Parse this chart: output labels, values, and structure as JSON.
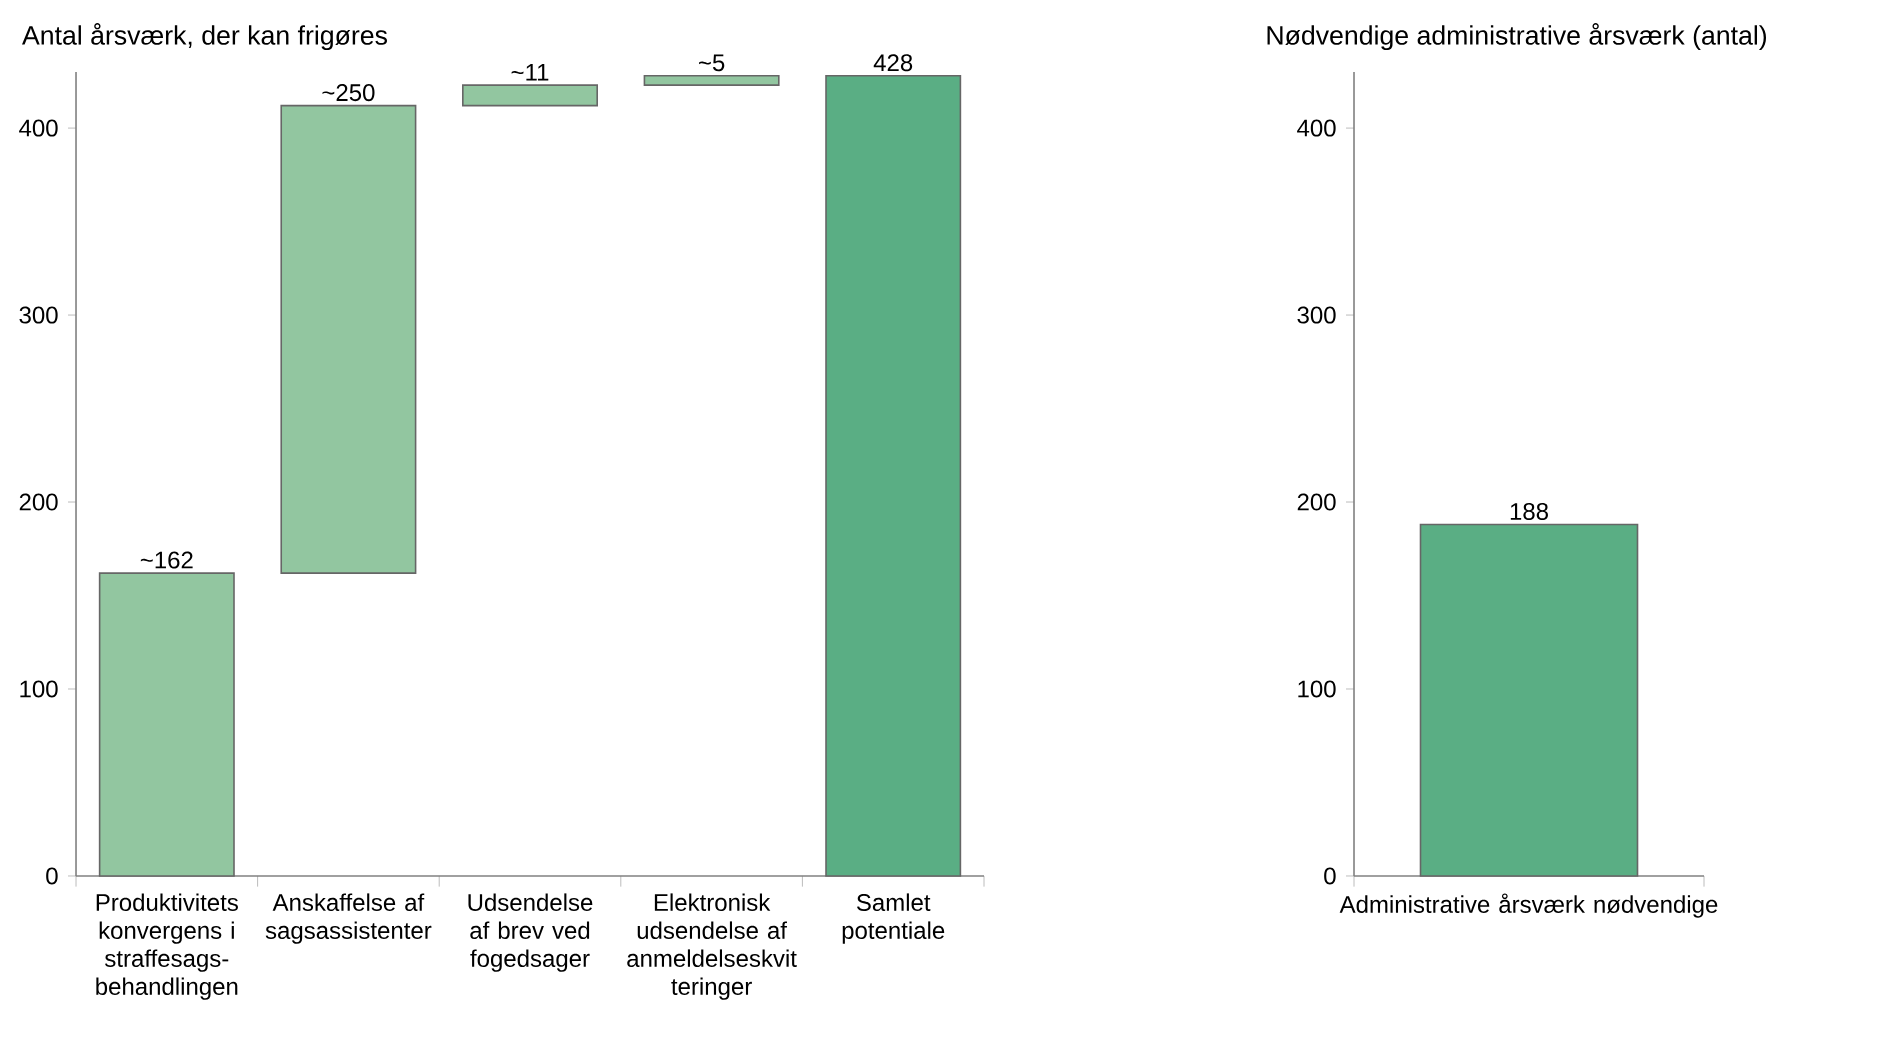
{
  "chart_data": [
    {
      "type": "bar",
      "title": "Antal årsværk, der kan frigøres",
      "categories": [
        "Produktivitets konvergens i straffesags-behandlingen",
        "Anskaffelse af sagsassistenter",
        "Udsendelse af brev ved fogedsager",
        "Elektronisk udsendelse af anmeldelseskvit teringer",
        "Samlet potentiale"
      ],
      "values": [
        162,
        250,
        11,
        5,
        428
      ],
      "base": [
        0,
        162,
        412,
        423,
        0
      ],
      "value_labels": [
        "~162",
        "~250",
        "~11",
        "~5",
        "428"
      ],
      "colors": [
        "#92c6a0",
        "#92c6a0",
        "#92c6a0",
        "#92c6a0",
        "#5aae84"
      ],
      "ylim": [
        0,
        430
      ],
      "yticks": [
        0,
        100,
        200,
        300,
        400
      ]
    },
    {
      "type": "bar",
      "title": "Nødvendige administrative årsværk (antal)",
      "categories": [
        "Administrative årsværk nødvendige"
      ],
      "values": [
        188
      ],
      "data_labels": true,
      "color": "#5aae84",
      "ylim": [
        0,
        430
      ],
      "yticks": [
        0,
        100,
        200,
        300,
        400
      ]
    }
  ]
}
